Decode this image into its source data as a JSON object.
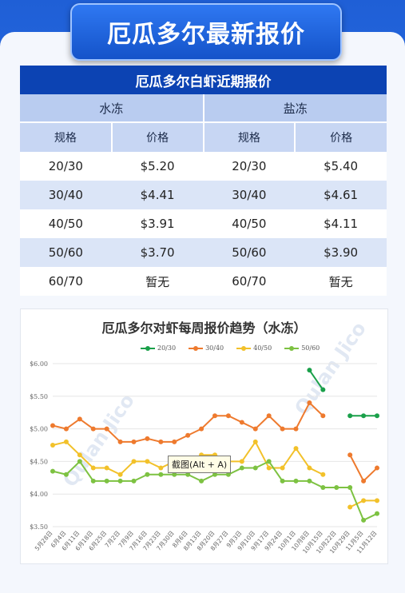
{
  "header_title": "厄瓜多尔最新报价",
  "table": {
    "title": "厄瓜多尔白虾近期报价",
    "groups": [
      "水冻",
      "盐冻"
    ],
    "columns": [
      "规格",
      "价格",
      "规格",
      "价格"
    ],
    "rows": [
      [
        "20/30",
        "$5.20",
        "20/30",
        "$5.40"
      ],
      [
        "30/40",
        "$4.41",
        "30/40",
        "$4.61"
      ],
      [
        "40/50",
        "$3.91",
        "40/50",
        "$4.11"
      ],
      [
        "50/60",
        "$3.70",
        "50/60",
        "$3.90"
      ],
      [
        "60/70",
        "暂无",
        "60/70",
        "暂无"
      ]
    ]
  },
  "watermark_text": "Qulan Jico",
  "tooltip": "截图(Alt + A)",
  "chart_data": {
    "type": "line",
    "title": "厄瓜多尔对虾每周报价趋势（水冻）",
    "categories": [
      "5月28日",
      "6月4日",
      "6月11日",
      "6月18日",
      "6月25日",
      "7月2日",
      "7月9日",
      "7月16日",
      "7月23日",
      "7月30日",
      "8月6日",
      "8月13日",
      "8月20日",
      "8月27日",
      "9月3日",
      "9月10日",
      "9月17日",
      "9月24日",
      "10月1日",
      "10月8日",
      "10月15日",
      "10月22日",
      "10月29日",
      "11月5日",
      "11月12日"
    ],
    "ylim": [
      3.5,
      6.0
    ],
    "yticks": [
      "$3.50",
      "$4.00",
      "$4.50",
      "$5.00",
      "$5.50",
      "$6.00"
    ],
    "grid": true,
    "legend_position": "top",
    "series": [
      {
        "name": "20/30",
        "color": "#1aa04a",
        "values": [
          null,
          null,
          null,
          null,
          null,
          null,
          null,
          null,
          null,
          null,
          null,
          null,
          null,
          null,
          null,
          null,
          null,
          null,
          null,
          5.9,
          5.6,
          null,
          5.2,
          5.2,
          5.2
        ]
      },
      {
        "name": "30/40",
        "color": "#ee7a2e",
        "values": [
          5.05,
          5.0,
          5.15,
          5.0,
          5.0,
          4.8,
          4.8,
          4.85,
          4.8,
          4.8,
          4.9,
          5.0,
          5.2,
          5.2,
          5.1,
          5.0,
          5.2,
          5.0,
          5.0,
          5.4,
          5.2,
          null,
          4.6,
          4.2,
          4.4
        ]
      },
      {
        "name": "40/50",
        "color": "#f2c12a",
        "values": [
          4.75,
          4.8,
          4.6,
          4.4,
          4.4,
          4.3,
          4.5,
          4.5,
          4.4,
          4.5,
          4.4,
          4.6,
          4.6,
          4.5,
          4.5,
          4.8,
          4.4,
          4.4,
          4.7,
          4.4,
          4.3,
          null,
          3.8,
          3.9,
          3.9
        ]
      },
      {
        "name": "50/60",
        "color": "#7dc242",
        "values": [
          4.35,
          4.3,
          4.5,
          4.2,
          4.2,
          4.2,
          4.2,
          4.3,
          4.3,
          4.3,
          4.3,
          4.2,
          4.3,
          4.3,
          4.4,
          4.4,
          4.5,
          4.2,
          4.2,
          4.2,
          4.1,
          4.1,
          4.1,
          3.6,
          3.7
        ]
      }
    ]
  }
}
